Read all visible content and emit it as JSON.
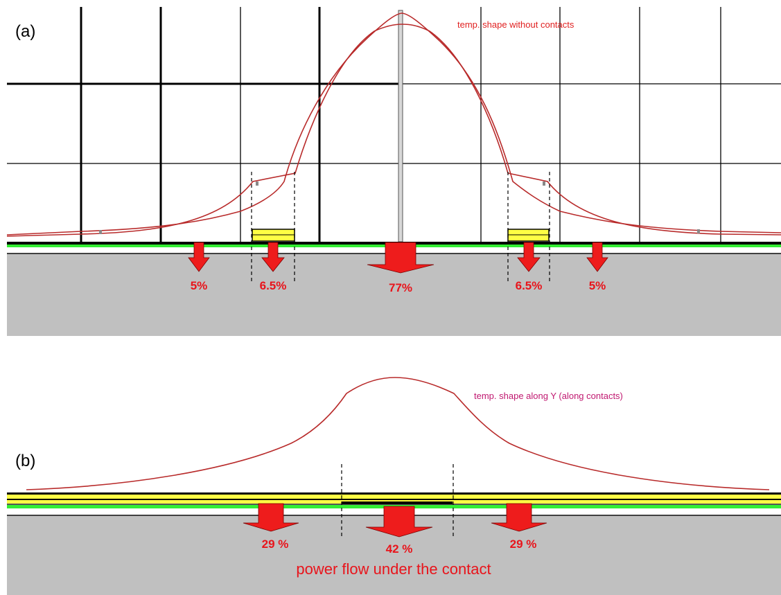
{
  "panel_a": {
    "label": "(a)",
    "curve_label": "temp. shape without contacts",
    "flows": [
      "5%",
      "6.5%",
      "77%",
      "6.5%",
      "5%"
    ]
  },
  "panel_b": {
    "label": "(b)",
    "curve_label": "temp. shape along Y (along contacts)",
    "flows": [
      "29 %",
      "42 %",
      "29 %"
    ],
    "caption": "power flow under the contact"
  },
  "colors": {
    "substrate": "#c0c0c0",
    "active_layer": "#33ee33",
    "contact": "#ffff44",
    "arrow": "#ee1c1c",
    "curve": "#b82a2a"
  }
}
